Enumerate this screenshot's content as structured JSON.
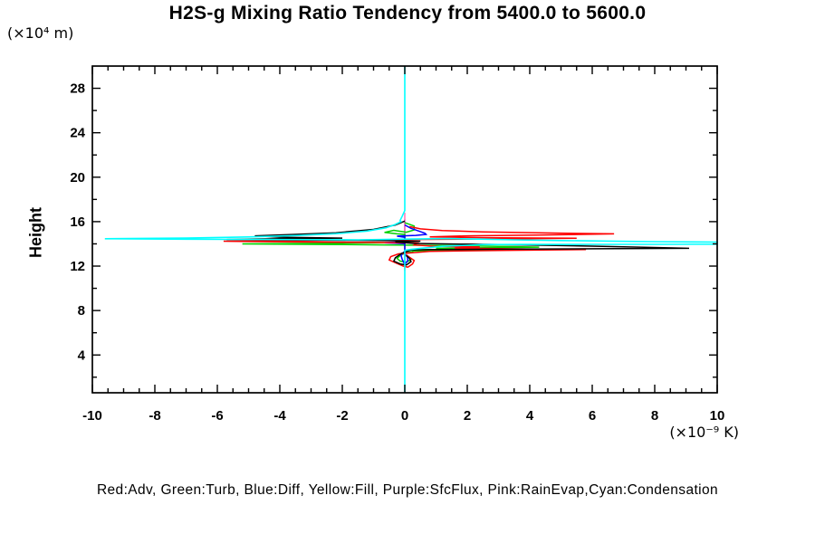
{
  "chart_data": {
    "type": "line",
    "title": "H2S-g Mixing Ratio Tendency from 5400.0 to 5600.0",
    "ylabel": "Height",
    "ylabel_unit": "(×10⁴ m)",
    "xlabel_unit": "(×10⁻⁹ K)",
    "legend_text": "Red:Adv, Green:Turb, Blue:Diff, Yellow:Fill, Purple:SfcFlux, Pink:RainEvap,Cyan:Condensation",
    "xlim": [
      -10,
      10
    ],
    "ylim": [
      0.6,
      30
    ],
    "grid": false,
    "x_axis": {
      "tick_values": [
        -10,
        -8,
        -6,
        -4,
        -2,
        0,
        2,
        4,
        6,
        8,
        10
      ],
      "tick_labels": [
        "-10",
        "-8",
        "-6",
        "-4",
        "-2",
        "0",
        "2",
        "4",
        "6",
        "8",
        "10"
      ],
      "minor_step": 0.5
    },
    "y_axis": {
      "tick_values": [
        4,
        8,
        12,
        16,
        20,
        24,
        28
      ],
      "tick_labels": [
        "4",
        "8",
        "12",
        "16",
        "20",
        "24",
        "28"
      ],
      "minor_step": 2
    },
    "zero_reference_line": {
      "x": 0,
      "color": "#00FFFF"
    },
    "series": [
      {
        "name": "sfcflux",
        "legend_label": "Purple:SfcFlux",
        "color": "#A020F0",
        "width": 1.4,
        "segments": [
          [
            [
              0,
              16.2
            ],
            [
              0,
              12.2
            ]
          ]
        ]
      },
      {
        "name": "rainevap",
        "legend_label": "Pink:RainEvap",
        "color": "#FF69B4",
        "width": 1.4,
        "segments": [
          [
            [
              0,
              16.8
            ],
            [
              0,
              11.6
            ]
          ]
        ]
      },
      {
        "name": "fill",
        "legend_label": "Yellow:Fill",
        "color": "#FFFF00",
        "width": 1.4,
        "segments": [
          [
            [
              0,
              14.6
            ],
            [
              0,
              13.6
            ]
          ]
        ]
      },
      {
        "name": "turb",
        "legend_label": "Green:Turb",
        "color": "#00D200",
        "width": 1.5,
        "segments": [
          [
            [
              0,
              15.9
            ],
            [
              0.3,
              15.6
            ],
            [
              0.3,
              15.25
            ],
            [
              0.05,
              15.05
            ],
            [
              -0.35,
              15.22
            ],
            [
              -0.65,
              15.03
            ],
            [
              -0.25,
              14.9
            ],
            [
              0,
              14.85
            ],
            [
              0,
              14.12
            ],
            [
              -2,
              14.06
            ],
            [
              -5.2,
              14.0
            ],
            [
              -2.5,
              13.95
            ],
            [
              -0.3,
              13.89
            ],
            [
              1.5,
              13.84
            ],
            [
              3,
              13.78
            ],
            [
              4.3,
              13.7
            ],
            [
              2.2,
              13.64
            ],
            [
              1,
              13.6
            ],
            [
              2.8,
              13.54
            ],
            [
              4.2,
              13.48
            ],
            [
              1.5,
              13.42
            ],
            [
              0.3,
              13.36
            ],
            [
              -0.1,
              13.05
            ],
            [
              -0.25,
              12.7
            ],
            [
              -0.15,
              12.45
            ],
            [
              0.05,
              12.35
            ],
            [
              0.2,
              12.6
            ],
            [
              0.1,
              12.85
            ],
            [
              0,
              13.0
            ]
          ]
        ]
      },
      {
        "name": "diff",
        "legend_label": "Blue:Diff",
        "color": "#0000FF",
        "width": 1.5,
        "segments": [
          [
            [
              0,
              15.7
            ],
            [
              0.2,
              15.4
            ],
            [
              0.45,
              15.15
            ],
            [
              0.65,
              14.95
            ],
            [
              0.68,
              14.85
            ],
            [
              0.35,
              14.76
            ],
            [
              -0.25,
              14.7
            ],
            [
              0,
              14.58
            ],
            [
              0,
              14.2
            ],
            [
              -0.65,
              14.1
            ],
            [
              -0.3,
              14.05
            ],
            [
              0,
              14.02
            ],
            [
              0,
              13.35
            ],
            [
              -0.12,
              12.95
            ],
            [
              -0.08,
              12.6
            ],
            [
              0,
              12.15
            ],
            [
              0.1,
              12.5
            ],
            [
              0.08,
              12.85
            ],
            [
              0,
              13.1
            ]
          ]
        ]
      },
      {
        "name": "adv",
        "legend_label": "Red:Adv",
        "color": "#FF0000",
        "width": 1.5,
        "segments": [
          [
            [
              0.15,
              15.55
            ],
            [
              0.5,
              15.35
            ],
            [
              1.2,
              15.2
            ],
            [
              2.5,
              15.08
            ],
            [
              4.5,
              14.98
            ],
            [
              6.7,
              14.9
            ],
            [
              4.5,
              14.8
            ],
            [
              2,
              14.72
            ],
            [
              0.8,
              14.62
            ],
            [
              2.5,
              14.56
            ],
            [
              5.5,
              14.5
            ],
            [
              2.5,
              14.44
            ],
            [
              0.3,
              14.4
            ],
            [
              -1.5,
              14.34
            ],
            [
              -3.5,
              14.28
            ],
            [
              -5.8,
              14.24
            ],
            [
              -3.5,
              14.17
            ],
            [
              -1,
              14.13
            ],
            [
              0.4,
              14.08
            ],
            [
              0.3,
              13.9
            ],
            [
              1,
              13.78
            ],
            [
              2.4,
              13.72
            ],
            [
              1.6,
              13.62
            ],
            [
              3.5,
              13.55
            ],
            [
              5.8,
              13.48
            ],
            [
              3,
              13.4
            ],
            [
              0.8,
              13.33
            ],
            [
              -0.2,
              13.1
            ],
            [
              -0.45,
              12.85
            ],
            [
              -0.5,
              12.55
            ],
            [
              -0.3,
              12.3
            ],
            [
              -0.05,
              12.0
            ],
            [
              0.1,
              11.9
            ],
            [
              0.25,
              12.2
            ],
            [
              0.3,
              12.5
            ],
            [
              0.15,
              12.8
            ],
            [
              0.05,
              13.0
            ]
          ]
        ]
      },
      {
        "name": "total",
        "legend_label": "",
        "color": "#000000",
        "width": 1.5,
        "segments": [
          [
            [
              0,
              16.05
            ],
            [
              -0.3,
              15.7
            ],
            [
              -1,
              15.3
            ],
            [
              -2.2,
              15.0
            ],
            [
              -3.5,
              14.85
            ],
            [
              -4.8,
              14.72
            ],
            [
              -4,
              14.6
            ],
            [
              -2,
              14.52
            ],
            [
              -4,
              14.46
            ],
            [
              -5.7,
              14.4
            ],
            [
              -3,
              14.34
            ],
            [
              -0.5,
              14.29
            ],
            [
              0.5,
              14.24
            ],
            [
              -0.3,
              14.17
            ],
            [
              0.3,
              14.04
            ],
            [
              2,
              13.97
            ],
            [
              4,
              13.89
            ],
            [
              6,
              13.79
            ],
            [
              7.5,
              13.7
            ],
            [
              9.1,
              13.6
            ],
            [
              6,
              13.56
            ],
            [
              3,
              13.52
            ],
            [
              0.8,
              13.49
            ],
            [
              0.2,
              13.44
            ],
            [
              -0.1,
              13.15
            ],
            [
              -0.3,
              12.75
            ],
            [
              -0.35,
              12.45
            ],
            [
              -0.15,
              12.2
            ],
            [
              0.05,
              12.1
            ],
            [
              0.2,
              12.4
            ],
            [
              0.15,
              12.7
            ],
            [
              0.05,
              12.95
            ]
          ]
        ]
      },
      {
        "name": "condensation",
        "legend_label": "Cyan:Condensation",
        "color": "#00FFFF",
        "width": 1.6,
        "segments": [
          [
            [
              0,
              30
            ],
            [
              0,
              17.0
            ],
            [
              -0.08,
              16.5
            ],
            [
              -0.15,
              16.1
            ],
            [
              -0.12,
              16.0
            ],
            [
              -0.3,
              15.75
            ],
            [
              -0.6,
              15.45
            ],
            [
              -1.2,
              15.15
            ],
            [
              -2.2,
              14.92
            ],
            [
              -3.5,
              14.75
            ],
            [
              -5,
              14.62
            ],
            [
              -7,
              14.53
            ],
            [
              -9.6,
              14.46
            ],
            [
              -7,
              14.42
            ],
            [
              -4,
              14.39
            ],
            [
              -1.5,
              14.36
            ],
            [
              0.3,
              14.44
            ],
            [
              1.4,
              14.48
            ],
            [
              2.2,
              14.44
            ],
            [
              3.5,
              14.36
            ],
            [
              5,
              14.3
            ],
            [
              6.5,
              14.25
            ],
            [
              8,
              14.2
            ],
            [
              10,
              14.16
            ],
            [
              10,
              13.97
            ],
            [
              8,
              13.96
            ],
            [
              6,
              13.96
            ],
            [
              4,
              13.95
            ],
            [
              2.5,
              13.93
            ],
            [
              1.2,
              13.78
            ],
            [
              0.5,
              13.6
            ],
            [
              0.2,
              13.5
            ],
            [
              0,
              13.42
            ],
            [
              0,
              0.6
            ]
          ]
        ]
      }
    ]
  }
}
